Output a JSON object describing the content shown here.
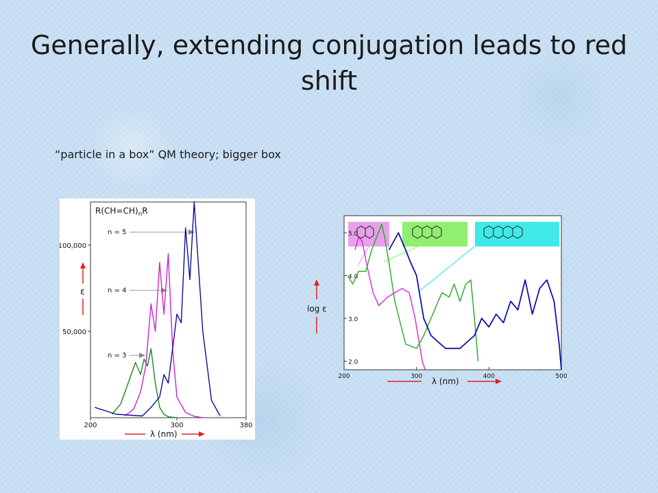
{
  "slide": {
    "title": "Generally, extending conjugation leads to red shift",
    "subtitle": "“particle in a box” QM theory; bigger box"
  },
  "chart_data": [
    {
      "type": "line",
      "formula": "R(CH=CH)nR",
      "xlabel": "λ (nm)",
      "ylabel": "ε",
      "xlim": [
        200,
        380
      ],
      "ylim": [
        0,
        125000
      ],
      "x_ticks": [
        "200",
        "300",
        "380"
      ],
      "y_ticks": [
        "50,000",
        "100,000"
      ],
      "annotations": [
        "n = 5",
        "n = 4",
        "n = 3"
      ],
      "colors": {
        "n=3": "#1a8a1a",
        "n=4": "#cc22cc",
        "n=5": "#0a0a9a",
        "arrow": "#e02020"
      },
      "series": [
        {
          "name": "n = 3",
          "x": [
            225,
            235,
            245,
            252,
            258,
            262,
            266,
            270,
            275,
            280,
            285,
            290,
            300
          ],
          "y": [
            2000,
            8000,
            22000,
            32000,
            25000,
            34000,
            30000,
            40000,
            20000,
            6000,
            2000,
            500,
            0
          ]
        },
        {
          "name": "n = 4",
          "x": [
            240,
            250,
            258,
            264,
            270,
            275,
            280,
            285,
            290,
            295,
            300,
            310,
            320,
            330
          ],
          "y": [
            1000,
            5000,
            15000,
            30000,
            66000,
            50000,
            90000,
            60000,
            95000,
            40000,
            12000,
            3000,
            800,
            0
          ]
        },
        {
          "name": "n = 5",
          "x": [
            205,
            230,
            260,
            270,
            280,
            285,
            290,
            295,
            300,
            305,
            310,
            315,
            320,
            330,
            340,
            350
          ],
          "y": [
            6000,
            2000,
            1000,
            6000,
            12000,
            25000,
            20000,
            40000,
            60000,
            55000,
            110000,
            80000,
            125000,
            50000,
            10000,
            1000
          ]
        }
      ]
    },
    {
      "type": "line",
      "xlabel": "λ (nm)",
      "ylabel": "log ε",
      "xlim": [
        200,
        500
      ],
      "ylim": [
        1.8,
        5.4
      ],
      "x_ticks": [
        "200",
        "300",
        "400",
        "500"
      ],
      "y_ticks": [
        "2.0",
        "3.0",
        "4.0",
        "5.0"
      ],
      "molecules": [
        "naphthalene",
        "anthracene",
        "tetracene"
      ],
      "colors": {
        "naphthalene": "#e020e0",
        "anthracene": "#20aa20",
        "tetracene": "#1010b0",
        "box_naph": "#e8a0e8",
        "box_anth": "#90ee70",
        "box_tetra": "#40e8e8",
        "arrow": "#e02020"
      },
      "series": [
        {
          "name": "naphthalene",
          "x": [
            215,
            220,
            225,
            232,
            240,
            248,
            260,
            270,
            280,
            290,
            298,
            302,
            308,
            312
          ],
          "y": [
            4.6,
            4.9,
            4.8,
            4.2,
            3.6,
            3.3,
            3.5,
            3.6,
            3.7,
            3.6,
            3.0,
            2.6,
            2.0,
            1.8
          ]
        },
        {
          "name": "anthracene",
          "x": [
            205,
            212,
            220,
            230,
            238,
            245,
            252,
            256,
            262,
            270,
            285,
            300,
            310,
            325,
            335,
            345,
            352,
            360,
            368,
            375,
            380,
            385
          ],
          "y": [
            4.0,
            3.8,
            4.1,
            4.1,
            4.6,
            4.9,
            5.2,
            4.9,
            4.3,
            3.4,
            2.4,
            2.3,
            2.6,
            3.2,
            3.6,
            3.5,
            3.8,
            3.4,
            3.8,
            3.9,
            3.0,
            2.0
          ]
        },
        {
          "name": "tetracene",
          "x": [
            262,
            275,
            285,
            292,
            300,
            310,
            320,
            340,
            360,
            380,
            390,
            400,
            410,
            420,
            430,
            440,
            450,
            460,
            470,
            480,
            490,
            497,
            500
          ],
          "y": [
            4.6,
            5.0,
            4.6,
            4.3,
            4.0,
            3.0,
            2.6,
            2.3,
            2.3,
            2.6,
            3.0,
            2.8,
            3.1,
            2.9,
            3.4,
            3.2,
            3.9,
            3.1,
            3.7,
            3.9,
            3.4,
            2.4,
            1.8
          ]
        }
      ]
    }
  ]
}
